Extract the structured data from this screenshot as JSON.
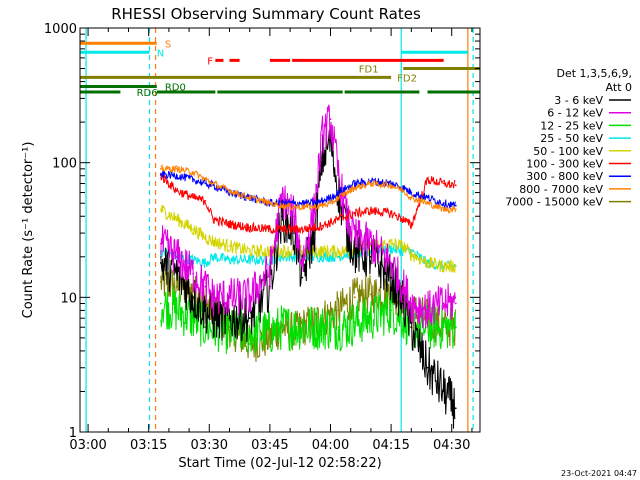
{
  "chart_data": {
    "type": "line",
    "title": "RHESSI Observing Summary Count Rates",
    "xlabel": "Start Time (02-Jul-12 02:58:22)",
    "ylabel": "Count Rate (s⁻¹ detector⁻¹)",
    "yscale": "log",
    "ylim": [
      1,
      1000
    ],
    "xlim_minutes": [
      -2,
      97
    ],
    "x_ticks": [
      {
        "min": 0,
        "label": "03:00"
      },
      {
        "min": 15,
        "label": "03:15"
      },
      {
        "min": 30,
        "label": "03:30"
      },
      {
        "min": 45,
        "label": "03:45"
      },
      {
        "min": 60,
        "label": "04:00"
      },
      {
        "min": 75,
        "label": "04:15"
      },
      {
        "min": 90,
        "label": "04:30"
      }
    ],
    "y_ticks": [
      {
        "value": 1,
        "label": "1"
      },
      {
        "value": 10,
        "label": "10"
      },
      {
        "value": 100,
        "label": "100"
      },
      {
        "value": 1000,
        "label": "1000"
      }
    ],
    "legend_header": [
      "Det 1,3,5,6,9,",
      "Att 0"
    ],
    "timestamp": "23-Oct-2021 04:47",
    "x_minutes": [
      18,
      22,
      26,
      29,
      31,
      35,
      40,
      45,
      48,
      51,
      53,
      56,
      58,
      60,
      62,
      64,
      66,
      70,
      75,
      78,
      80,
      84,
      88,
      91
    ],
    "series": [
      {
        "name": "3 - 6 keV",
        "color": "#000000",
        "values": [
          18,
          15,
          10,
          8,
          7,
          7,
          7,
          12,
          40,
          30,
          14,
          30,
          110,
          145,
          60,
          32,
          22,
          20,
          14,
          9,
          6,
          3,
          2,
          1.5
        ]
      },
      {
        "name": "6 - 12 keV",
        "color": "#e000e0",
        "values": [
          25,
          20,
          15,
          12,
          10,
          10,
          10,
          16,
          55,
          40,
          18,
          45,
          160,
          210,
          80,
          40,
          28,
          25,
          18,
          12,
          9,
          8,
          9,
          9
        ]
      },
      {
        "name": "12 - 25 keV",
        "color": "#00e000",
        "values": [
          9,
          8,
          7,
          6,
          6,
          5.5,
          5.5,
          5.5,
          6,
          6,
          6,
          6,
          6,
          6,
          6,
          6,
          6.5,
          7,
          8,
          7,
          6,
          6,
          6,
          6
        ]
      },
      {
        "name": "25 - 50 keV",
        "color": "#00e8e8",
        "values": [
          22,
          20,
          19,
          18,
          20,
          19,
          19,
          19,
          20,
          20,
          20,
          20,
          20,
          20,
          20,
          21,
          21,
          22,
          23,
          22,
          22,
          18,
          17,
          17
        ]
      },
      {
        "name": "50 - 100 keV",
        "color": "#d4d400",
        "values": [
          45,
          38,
          32,
          28,
          26,
          24,
          22,
          22,
          22,
          22,
          22,
          22,
          22,
          22,
          22,
          22,
          23,
          24,
          25,
          24,
          21,
          18,
          17,
          17
        ]
      },
      {
        "name": "100 - 300 keV",
        "color": "#ff0000",
        "values": [
          80,
          62,
          55,
          52,
          38,
          35,
          33,
          32,
          32,
          32,
          32,
          33,
          34,
          36,
          38,
          40,
          42,
          44,
          42,
          38,
          34,
          75,
          70,
          68
        ]
      },
      {
        "name": "300 - 800 keV",
        "color": "#0000ff",
        "values": [
          82,
          80,
          75,
          70,
          68,
          60,
          55,
          50,
          50,
          50,
          50,
          50,
          52,
          55,
          60,
          65,
          70,
          73,
          70,
          65,
          60,
          55,
          50,
          48
        ]
      },
      {
        "name": "800 - 7000 keV",
        "color": "#ff8000",
        "values": [
          90,
          90,
          85,
          75,
          70,
          62,
          55,
          50,
          48,
          47,
          47,
          47,
          48,
          50,
          55,
          60,
          65,
          70,
          68,
          62,
          55,
          50,
          45,
          45
        ]
      },
      {
        "name": "7000 - 15000 keV",
        "color": "#808000",
        "values": [
          13,
          12,
          11,
          9,
          8,
          6,
          4.5,
          5,
          6,
          5.5,
          6,
          6.5,
          7,
          7.5,
          8,
          9,
          10,
          10.5,
          11,
          9.5,
          8,
          7,
          6,
          6
        ]
      }
    ],
    "vertical_markers": [
      {
        "min": -0.5,
        "color": "#00e8e8",
        "style": "solid"
      },
      {
        "min": 15.2,
        "color": "#00e8e8",
        "style": "dashed"
      },
      {
        "min": 16.7,
        "color": "#ff8000",
        "style": "dashed"
      },
      {
        "min": 77.5,
        "color": "#00e8e8",
        "style": "solid"
      },
      {
        "min": 94,
        "color": "#ff8000",
        "style": "solid"
      },
      {
        "min": 95.3,
        "color": "#00e8e8",
        "style": "dashed"
      }
    ],
    "state_bars": [
      {
        "label": "S",
        "color": "#ff8000",
        "y": 770,
        "label_min": 19,
        "segments": [
          [
            -2,
            17
          ]
        ]
      },
      {
        "label": "N",
        "color": "#00e8e8",
        "y": 660,
        "label_min": 17,
        "segments": [
          [
            -2,
            15.2
          ],
          [
            77.5,
            94
          ]
        ]
      },
      {
        "label": "F",
        "color": "#ff0000",
        "y": 575,
        "label_min": 29.5,
        "segments": [
          [
            31.5,
            33.5
          ],
          [
            35,
            37.5
          ],
          [
            45,
            50
          ],
          [
            50.5,
            88
          ]
        ]
      },
      {
        "label": "FD1",
        "color": "#808000",
        "y": 500,
        "label_min": 67,
        "segments": [
          [
            78,
            97
          ]
        ]
      },
      {
        "label": "FD2",
        "color": "#808000",
        "y": 430,
        "label_min": 76.5,
        "segments": [
          [
            -2,
            75
          ]
        ]
      },
      {
        "label": "RD0",
        "color": "#007000",
        "y": 368,
        "label_min": 19,
        "segments": [
          [
            -2,
            17
          ]
        ]
      },
      {
        "label": "RD6",
        "color": "#007000",
        "y": 335,
        "label_min": 12,
        "segments": [
          [
            -2,
            8
          ],
          [
            17,
            31.5
          ],
          [
            32,
            63
          ],
          [
            63.5,
            82
          ],
          [
            84,
            97
          ]
        ]
      }
    ]
  }
}
